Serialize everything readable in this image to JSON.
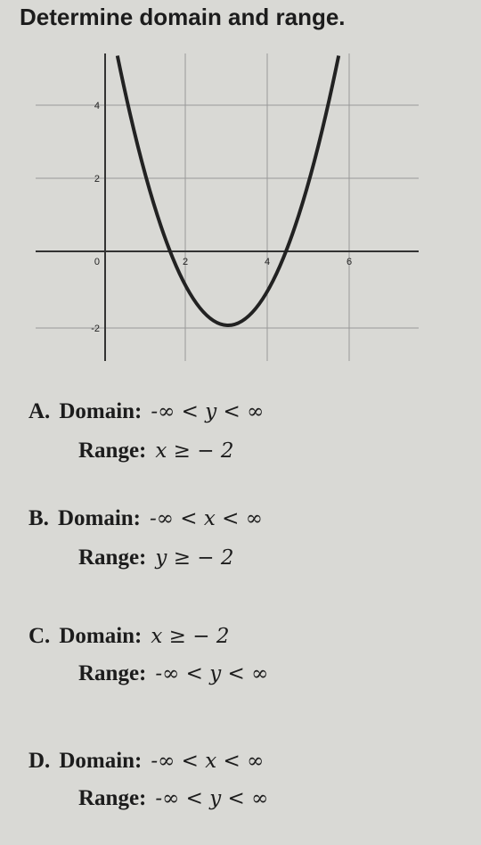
{
  "title": "Determine domain and range.",
  "graph": {
    "y_labels": [
      "4",
      "2",
      "0",
      "-2"
    ],
    "x_labels": [
      "2",
      "4",
      "6"
    ]
  },
  "options": [
    {
      "letter": "A.",
      "domain_label": "Domain:",
      "domain": "-∞ < y < ∞",
      "range_label": "Range:",
      "range": "x ≥ − 2"
    },
    {
      "letter": "B.",
      "domain_label": "Domain:",
      "domain": "-∞ < x < ∞",
      "range_label": "Range:",
      "range": "y ≥ − 2"
    },
    {
      "letter": "C.",
      "domain_label": "Domain:",
      "domain": "x ≥ − 2",
      "range_label": "Range:",
      "range": "-∞ < y < ∞"
    },
    {
      "letter": "D.",
      "domain_label": "Domain:",
      "domain": "-∞ < x < ∞",
      "range_label": "Range:",
      "range": "-∞ < y < ∞"
    }
  ]
}
